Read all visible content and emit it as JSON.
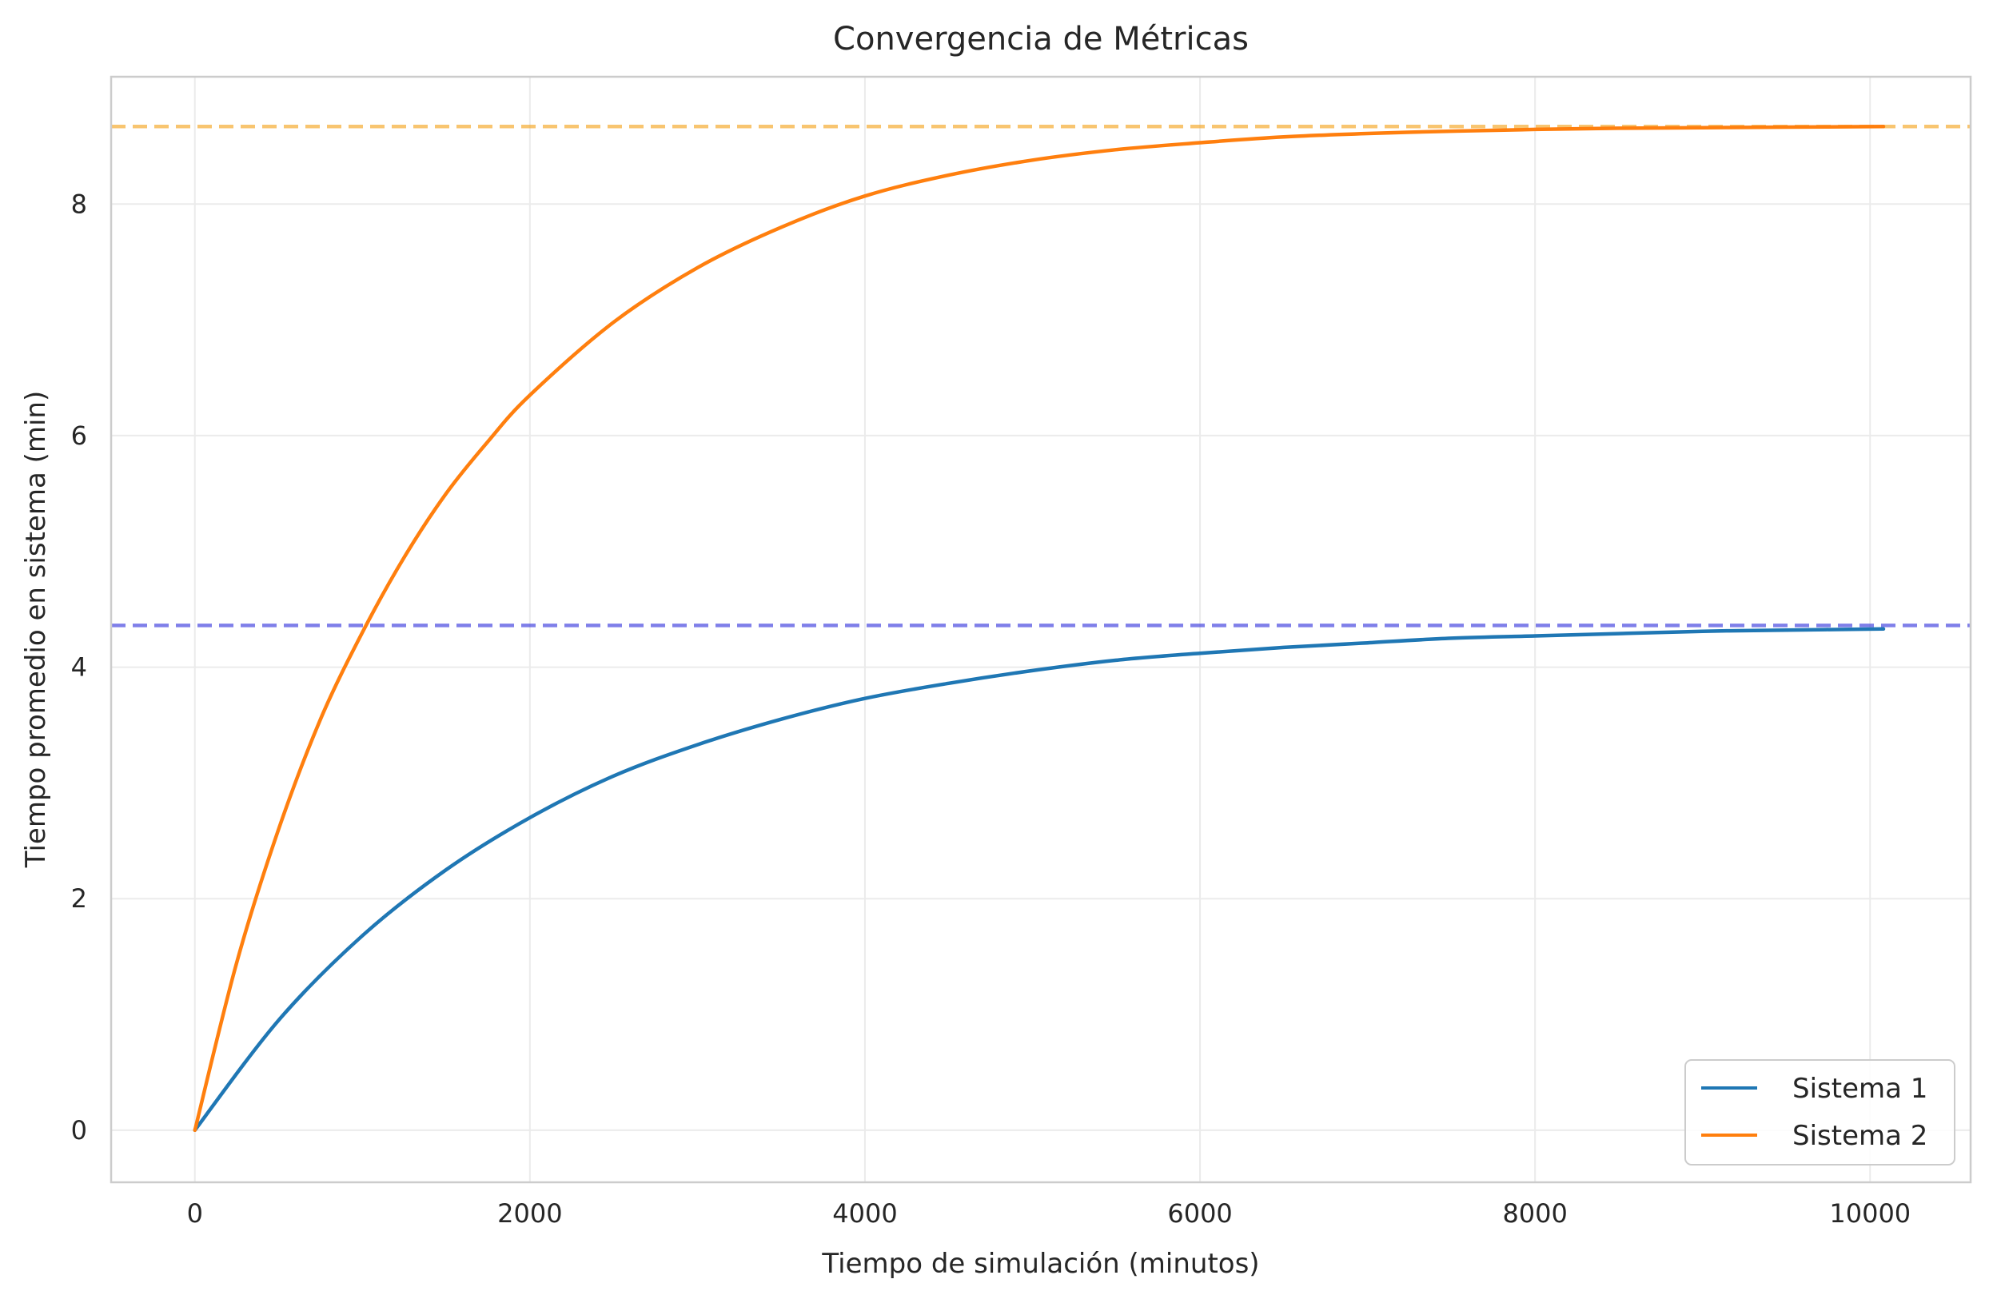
{
  "chart_data": {
    "type": "line",
    "title": "Convergencia de Métricas",
    "xlabel": "Tiempo de simulación (minutos)",
    "ylabel": "Tiempo promedio en sistema (min)",
    "xlim": [
      -500,
      10600
    ],
    "ylim": [
      -0.45,
      9.1
    ],
    "xticks": [
      0,
      2000,
      4000,
      6000,
      8000,
      10000
    ],
    "xtick_labels": [
      "0",
      "2000",
      "4000",
      "6000",
      "8000",
      "10000"
    ],
    "yticks": [
      0,
      2,
      4,
      6,
      8
    ],
    "ytick_labels": [
      "0",
      "2",
      "4",
      "6",
      "8"
    ],
    "grid": true,
    "legend_position": "lower-right",
    "series": [
      {
        "name": "Sistema 1",
        "color": "#1f77b4",
        "x": [
          0,
          500,
          1000,
          1500,
          2000,
          2500,
          3000,
          3500,
          4000,
          4500,
          5000,
          5500,
          6000,
          6500,
          7000,
          7500,
          8000,
          8500,
          9000,
          9500,
          10080
        ],
        "y": [
          0,
          0.95,
          1.68,
          2.25,
          2.7,
          3.06,
          3.33,
          3.55,
          3.73,
          3.86,
          3.97,
          4.06,
          4.12,
          4.17,
          4.21,
          4.25,
          4.27,
          4.29,
          4.31,
          4.32,
          4.33
        ]
      },
      {
        "name": "Sistema 2",
        "color": "#ff7f0e",
        "x": [
          0,
          250,
          500,
          750,
          1000,
          1250,
          1500,
          1750,
          2000,
          2500,
          3000,
          3500,
          4000,
          4500,
          5000,
          5500,
          6000,
          6500,
          7000,
          7500,
          8000,
          8500,
          9000,
          9500,
          10080
        ],
        "y": [
          0,
          1.45,
          2.6,
          3.55,
          4.3,
          4.95,
          5.5,
          5.95,
          6.35,
          6.98,
          7.45,
          7.8,
          8.07,
          8.25,
          8.38,
          8.47,
          8.53,
          8.58,
          8.61,
          8.63,
          8.645,
          8.655,
          8.66,
          8.665,
          8.67
        ]
      }
    ],
    "reference_lines": [
      {
        "y": 8.67,
        "color": "#f5a623",
        "style": "dashed"
      },
      {
        "y": 4.36,
        "color": "#3b3bdd",
        "style": "dashed"
      }
    ]
  }
}
